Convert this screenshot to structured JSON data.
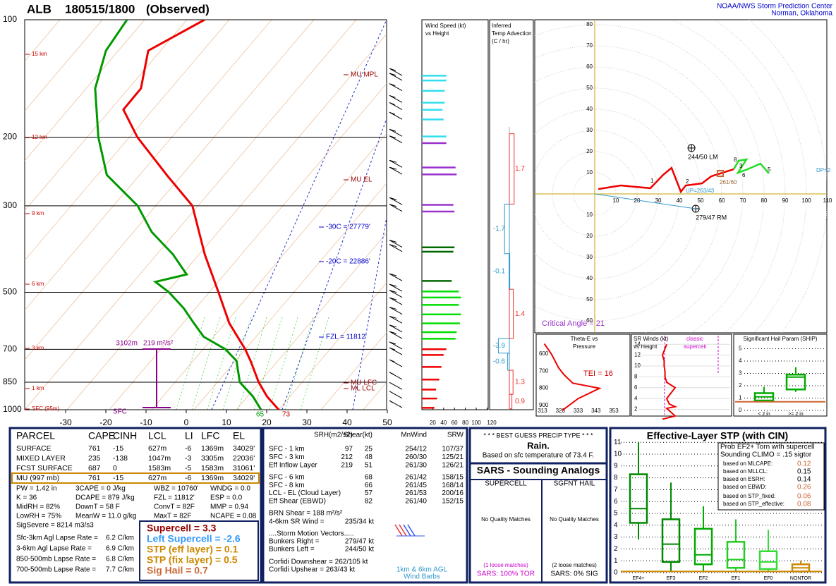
{
  "header": {
    "station": "ALB",
    "time": "180515/1800",
    "kind": "(Observed)",
    "org": "NOAA/NWS Storm Prediction Center",
    "place": "Norman, Oklahoma"
  },
  "skewt": {
    "temp_ticks": [
      -30,
      -20,
      -10,
      0,
      10,
      20,
      30,
      40,
      50
    ],
    "pressure_ticks": [
      100,
      200,
      300,
      500,
      700,
      850,
      1000
    ],
    "height_labels": [
      "15 km",
      "12 km",
      "9 km",
      "6 km",
      "3 km",
      "1 km",
      "SFC (95m)"
    ],
    "level_labels": [
      "MU MPL",
      "MU EL",
      "-30C = 27779'",
      "-20C = 22886'",
      "FZL = 11812'",
      "MU LFC",
      "ML LCL"
    ],
    "inflow": {
      "top": "3102m",
      "srh": "219 m²/s²",
      "base": "SFC"
    },
    "sfc_dewpoint": "65",
    "sfc_temp": "73",
    "temp_color": "#ee0000",
    "dew_color": "#009900",
    "pressure": [
      1000,
      925,
      850,
      750,
      700,
      600,
      500,
      400,
      300,
      250,
      200,
      170,
      150,
      120,
      100
    ],
    "temperature": [
      23.0,
      17.3,
      12.2,
      5.7,
      1.9,
      -7.6,
      -16.8,
      -28.2,
      -41.6,
      -54.5,
      -69.8,
      -79.1,
      -79.2,
      -85.4,
      -77.9
    ],
    "dew_pressure": [
      1000,
      925,
      850,
      750,
      700,
      650,
      600,
      550,
      500,
      470,
      450,
      400,
      350,
      300,
      250,
      200,
      150,
      120,
      100
    ],
    "dewpoint": [
      18.6,
      13.8,
      7.5,
      2.2,
      -3.0,
      -11.1,
      -16.4,
      -22.0,
      -29.1,
      -34.7,
      -28.5,
      -36.1,
      -46.2,
      -55.2,
      -69.4,
      -79.5,
      -90.6,
      -95.9,
      -97.2
    ]
  },
  "wind": {
    "title": [
      "Wind Speed (kt)",
      "vs Height"
    ],
    "ticks": [
      20,
      40,
      60,
      80,
      100,
      120
    ],
    "layers": [
      {
        "color": "#ee0000",
        "pressure": [
          988,
          935,
          887,
          836,
          776,
          723,
          699
        ],
        "speed": [
          23,
          28,
          26,
          32,
          36,
          40,
          45
        ]
      },
      {
        "color": "#00dd00",
        "pressure": [
          657,
          632,
          600,
          569,
          538,
          515,
          497
        ],
        "speed": [
          62,
          64,
          70,
          72,
          68,
          72,
          68
        ]
      },
      {
        "color": "#006600",
        "pressure": [
          467,
          393,
          383
        ],
        "speed": [
          55,
          58,
          60
        ]
      },
      {
        "color": "#9933cc",
        "pressure": [
          310,
          298,
          249,
          239,
          207
        ],
        "speed": [
          60,
          58,
          64,
          62,
          45
        ]
      },
      {
        "color": "#33ddee",
        "pressure": [
          199,
          180,
          170,
          163,
          152,
          143,
          139
        ],
        "speed": [
          45,
          40,
          38,
          42,
          42,
          45,
          45
        ]
      }
    ]
  },
  "advection": {
    "title": [
      "Inferred",
      "Temp Advection",
      "(C / hr)"
    ],
    "layers": [
      {
        "top": 196,
        "bottom": 297,
        "value": 1.7
      },
      {
        "top": 297,
        "bottom": 398,
        "value": -1.7
      },
      {
        "top": 398,
        "bottom": 491,
        "value": -0.1
      },
      {
        "top": 491,
        "bottom": 657,
        "value": 1.4
      },
      {
        "top": 657,
        "bottom": 716,
        "value": -3.9
      },
      {
        "top": 716,
        "bottom": 792,
        "value": -0.6
      },
      {
        "top": 792,
        "bottom": 913,
        "value": 1.3
      },
      {
        "top": 913,
        "bottom": 995,
        "value": 0.9
      }
    ]
  },
  "hodograph": {
    "rings": [
      10,
      20,
      30,
      40,
      50,
      60,
      70,
      80,
      90,
      100,
      110
    ],
    "series": [
      {
        "color": "#ee0000",
        "u": [
          1.7,
          12.3,
          26.3,
          32.3,
          36.3,
          40.7,
          43,
          50.7,
          55,
          65.7
        ],
        "v": [
          2.3,
          4,
          2.7,
          9,
          12.3,
          1,
          4,
          5,
          8.3,
          11.7
        ]
      },
      {
        "color": "#22dd22",
        "u": [
          65.7,
          68,
          71.7,
          67.7,
          72.3,
          78.3,
          82.3
        ],
        "v": [
          11.7,
          15.7,
          16.3,
          10,
          11.7,
          14.3,
          9.7
        ]
      }
    ],
    "km_labels": [
      "1",
      "2",
      "3",
      "5",
      "6",
      "8"
    ],
    "lm": {
      "label": "244/50 LM",
      "u": 45.7,
      "v": 21.7
    },
    "rm": {
      "label": "279/47 RM",
      "u": 47.7,
      "v": -7
    },
    "up": "UP=263/43",
    "dp": "DP=2",
    "mean": "261/60",
    "critical": "Critical Angle = 21"
  },
  "theta_e": {
    "title": [
      "Theta-E vs",
      "Pressure"
    ],
    "tei": "TEI = 16",
    "xticks": [
      313,
      323,
      333,
      343,
      353
    ],
    "yticks": [
      600,
      700,
      800,
      900
    ],
    "theta": [
      324,
      333,
      345,
      330,
      325,
      322,
      318,
      314
    ],
    "pressure": [
      930,
      860,
      800,
      770,
      720,
      680,
      600,
      540
    ]
  },
  "sr_winds": {
    "title": [
      "SR Winds (kt)",
      "vs Height"
    ],
    "note": [
      "classic",
      "supercell"
    ],
    "yticks": [
      2,
      4,
      6,
      8,
      10,
      12,
      14
    ],
    "height": [
      0.2,
      0.8,
      1.5,
      2.2,
      2.5,
      3,
      4,
      5,
      6,
      7,
      8,
      9,
      10,
      11,
      12,
      14
    ],
    "speed": [
      30,
      45,
      40,
      35,
      45,
      38,
      35,
      40,
      45,
      35,
      33,
      33,
      32,
      32,
      30,
      35
    ]
  },
  "ship": {
    "title": "Significant Hail Param (SHIP)",
    "yticks": [
      0,
      1,
      2,
      3,
      4,
      5
    ],
    "current": 0.7,
    "boxes": [
      {
        "label": "< 2 in",
        "stats": [
          0.7,
          0.8,
          1.1,
          1.4,
          1.9
        ]
      },
      {
        "label": ">= 2 in",
        "stats": [
          1.5,
          1.7,
          2.7,
          2.9,
          3.5
        ]
      }
    ]
  },
  "parcel": {
    "header": [
      "PARCEL",
      "CAPE",
      "CINH",
      "LCL",
      "LI",
      "LFC",
      "EL"
    ],
    "rows": [
      [
        "SURFACE",
        "761",
        "-15",
        "627m",
        "-6",
        "1369m",
        "34029'"
      ],
      [
        "MIXED LAYER",
        "235",
        "-138",
        "1047m",
        "-3",
        "3305m",
        "22036'"
      ],
      [
        "FCST SURFACE",
        "687",
        "0",
        "1583m",
        "-5",
        "1583m",
        "31061'"
      ],
      [
        "MU  (997 mb)",
        "761",
        "-15",
        "627m",
        "-6",
        "1369m",
        "34029'"
      ]
    ],
    "indices": [
      [
        "PW = 1.42 in",
        "3CAPE = 0 J/kg",
        "WBZ = 10760'",
        "WNDG = 0.0"
      ],
      [
        "K = 36",
        "DCAPE = 879 J/kg",
        "FZL = 11812'",
        "ESP = 0.0"
      ],
      [
        "MidRH = 82%",
        "DownT = 58 F",
        "ConvT = 82F",
        "MMP = 0.94"
      ],
      [
        "LowRH = 75%",
        "MeanW = 11.0 g/kg",
        "MaxT = 82F",
        "NCAPE = 0.08"
      ],
      [
        "SigSevere = 8214 m3/s3"
      ]
    ],
    "lapse": [
      [
        "Sfc-3km Agl Lapse Rate =",
        "6.2 C/km"
      ],
      [
        "3-6km Agl Lapse Rate =",
        "6.9 C/km"
      ],
      [
        "850-500mb Lapse Rate =",
        "6.8 C/km"
      ],
      [
        "700-500mb Lapse Rate =",
        "7.7 C/km"
      ]
    ],
    "composites": [
      {
        "text": "Supercell = 3.3",
        "color": "#990000"
      },
      {
        "text": "Left Supercell = -2.6",
        "color": "#3399ff"
      },
      {
        "text": "STP (eff layer) = 0.1",
        "color": "#cc8800"
      },
      {
        "text": "STP (fix layer) = 0.5",
        "color": "#cc8800"
      },
      {
        "text": "Sig Hail = 0.7",
        "color": "#cc6633"
      }
    ]
  },
  "kinematics": {
    "header": [
      "SRH(m2/s2)",
      "Shear(kt)",
      "MnWind",
      "SRW"
    ],
    "rows": [
      [
        "SFC - 1 km",
        "97",
        "25",
        "254/12",
        "107/37"
      ],
      [
        "SFC - 3 km",
        "212",
        "48",
        "260/30",
        "125/21"
      ],
      [
        "Eff Inflow Layer",
        "219",
        "51",
        "261/30",
        "126/21"
      ]
    ],
    "rows2": [
      [
        "SFC - 6 km",
        "68",
        "261/42",
        "158/15"
      ],
      [
        "SFC - 8 km",
        "66",
        "261/45",
        "168/14"
      ],
      [
        "LCL - EL (Cloud Layer)",
        "57",
        "261/53",
        "200/16"
      ],
      [
        "Eff Shear (EBWD)",
        "82",
        "261/40",
        "152/15"
      ]
    ],
    "brn": "BRN Shear = 188 m²/s²",
    "sr46": [
      "4-6km SR Wind =",
      "235/34 kt"
    ],
    "motion": "....Storm Motion Vectors.....",
    "vectors": [
      [
        "Bunkers Right =",
        "279/47 kt"
      ],
      [
        "Bunkers Left =",
        "244/50 kt"
      ]
    ],
    "corfidi": [
      "Corfidi Downshear = 262/105 kt",
      "Corfidi Upshear = 263/43 kt"
    ],
    "barbs": [
      "1km & 6km AGL",
      "Wind Barbs"
    ]
  },
  "precip": {
    "title": "* * * BEST GUESS PRECIP TYPE * * *",
    "type": "Rain.",
    "basis": "Based on sfc temperature of 73.4 F."
  },
  "sars": {
    "title": "SARS - Sounding Analogs",
    "columns": [
      {
        "head": "SUPERCELL",
        "match": "No Quality Matches",
        "loose": "(1 loose matches)",
        "result": "SARS:  100% TOR"
      },
      {
        "head": "SGFNT HAIL",
        "match": "No Quality Matches",
        "loose": "(2 loose matches)",
        "result": "SARS:  0% SIG"
      }
    ]
  },
  "stp": {
    "title": "Effective-Layer STP (with CIN)",
    "yticks": [
      0,
      1,
      2,
      3,
      4,
      5,
      6,
      7,
      8,
      9,
      10,
      11
    ],
    "current": 0.1,
    "boxes": [
      {
        "label": "EF4+",
        "color": "#008800",
        "stats": [
          2.8,
          4.2,
          5.4,
          8.3,
          11.0
        ]
      },
      {
        "label": "EF3",
        "color": "#008800",
        "stats": [
          0.1,
          0.9,
          2.4,
          4.5,
          7.6
        ]
      },
      {
        "label": "EF2",
        "color": "#00aa00",
        "stats": [
          0.1,
          0.7,
          1.5,
          3.7,
          5.6
        ]
      },
      {
        "label": "EF1",
        "color": "#22cc22",
        "stats": [
          0.1,
          0.4,
          1.1,
          2.6,
          4.5
        ]
      },
      {
        "label": "EF0",
        "color": "#33dd33",
        "stats": [
          0.1,
          0.3,
          0.9,
          1.8,
          3.6
        ]
      },
      {
        "label": "NONTOR",
        "color": "#cc8800",
        "stats": [
          0,
          0.1,
          0.4,
          0.7,
          1.0
        ]
      }
    ],
    "prob": [
      "Prob EF2+ Torn with supercell",
      "Sounding CLIMO = .15 sigtor"
    ],
    "based": [
      [
        "based on MLCAPE:",
        "0.12"
      ],
      [
        "based on MLLCL:",
        "0.15"
      ],
      [
        "based on ESRH:",
        "0.14"
      ],
      [
        "based on EBWD:",
        "0.26"
      ]
    ],
    "based2": [
      [
        "based on STP_fixed:",
        "0.06"
      ],
      [
        "based on STP_effective:",
        "0.08"
      ]
    ]
  }
}
